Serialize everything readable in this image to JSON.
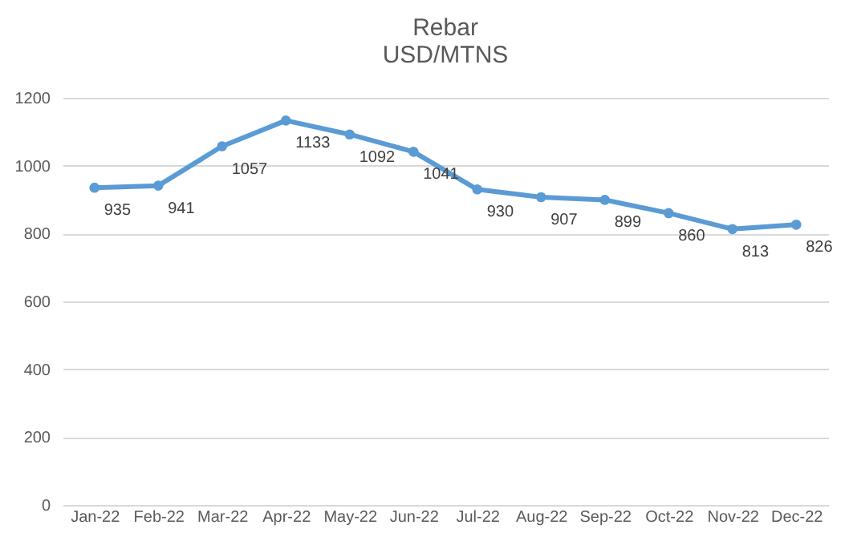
{
  "chart_data": {
    "type": "line",
    "title": "Rebar",
    "subtitle": "USD/MTNS",
    "categories": [
      "Jan-22",
      "Feb-22",
      "Mar-22",
      "Apr-22",
      "May-22",
      "Jun-22",
      "Jul-22",
      "Aug-22",
      "Sep-22",
      "Oct-22",
      "Nov-22",
      "Dec-22"
    ],
    "values": [
      935,
      941,
      1057,
      1133,
      1092,
      1041,
      930,
      907,
      899,
      860,
      813,
      826
    ],
    "color": "#5b9bd5",
    "ylim": [
      0,
      1200
    ],
    "yticks": [
      0,
      200,
      400,
      600,
      800,
      1000,
      1200
    ],
    "grid": "y",
    "marker": "circle",
    "line_style": "solid",
    "data_labels": true
  }
}
